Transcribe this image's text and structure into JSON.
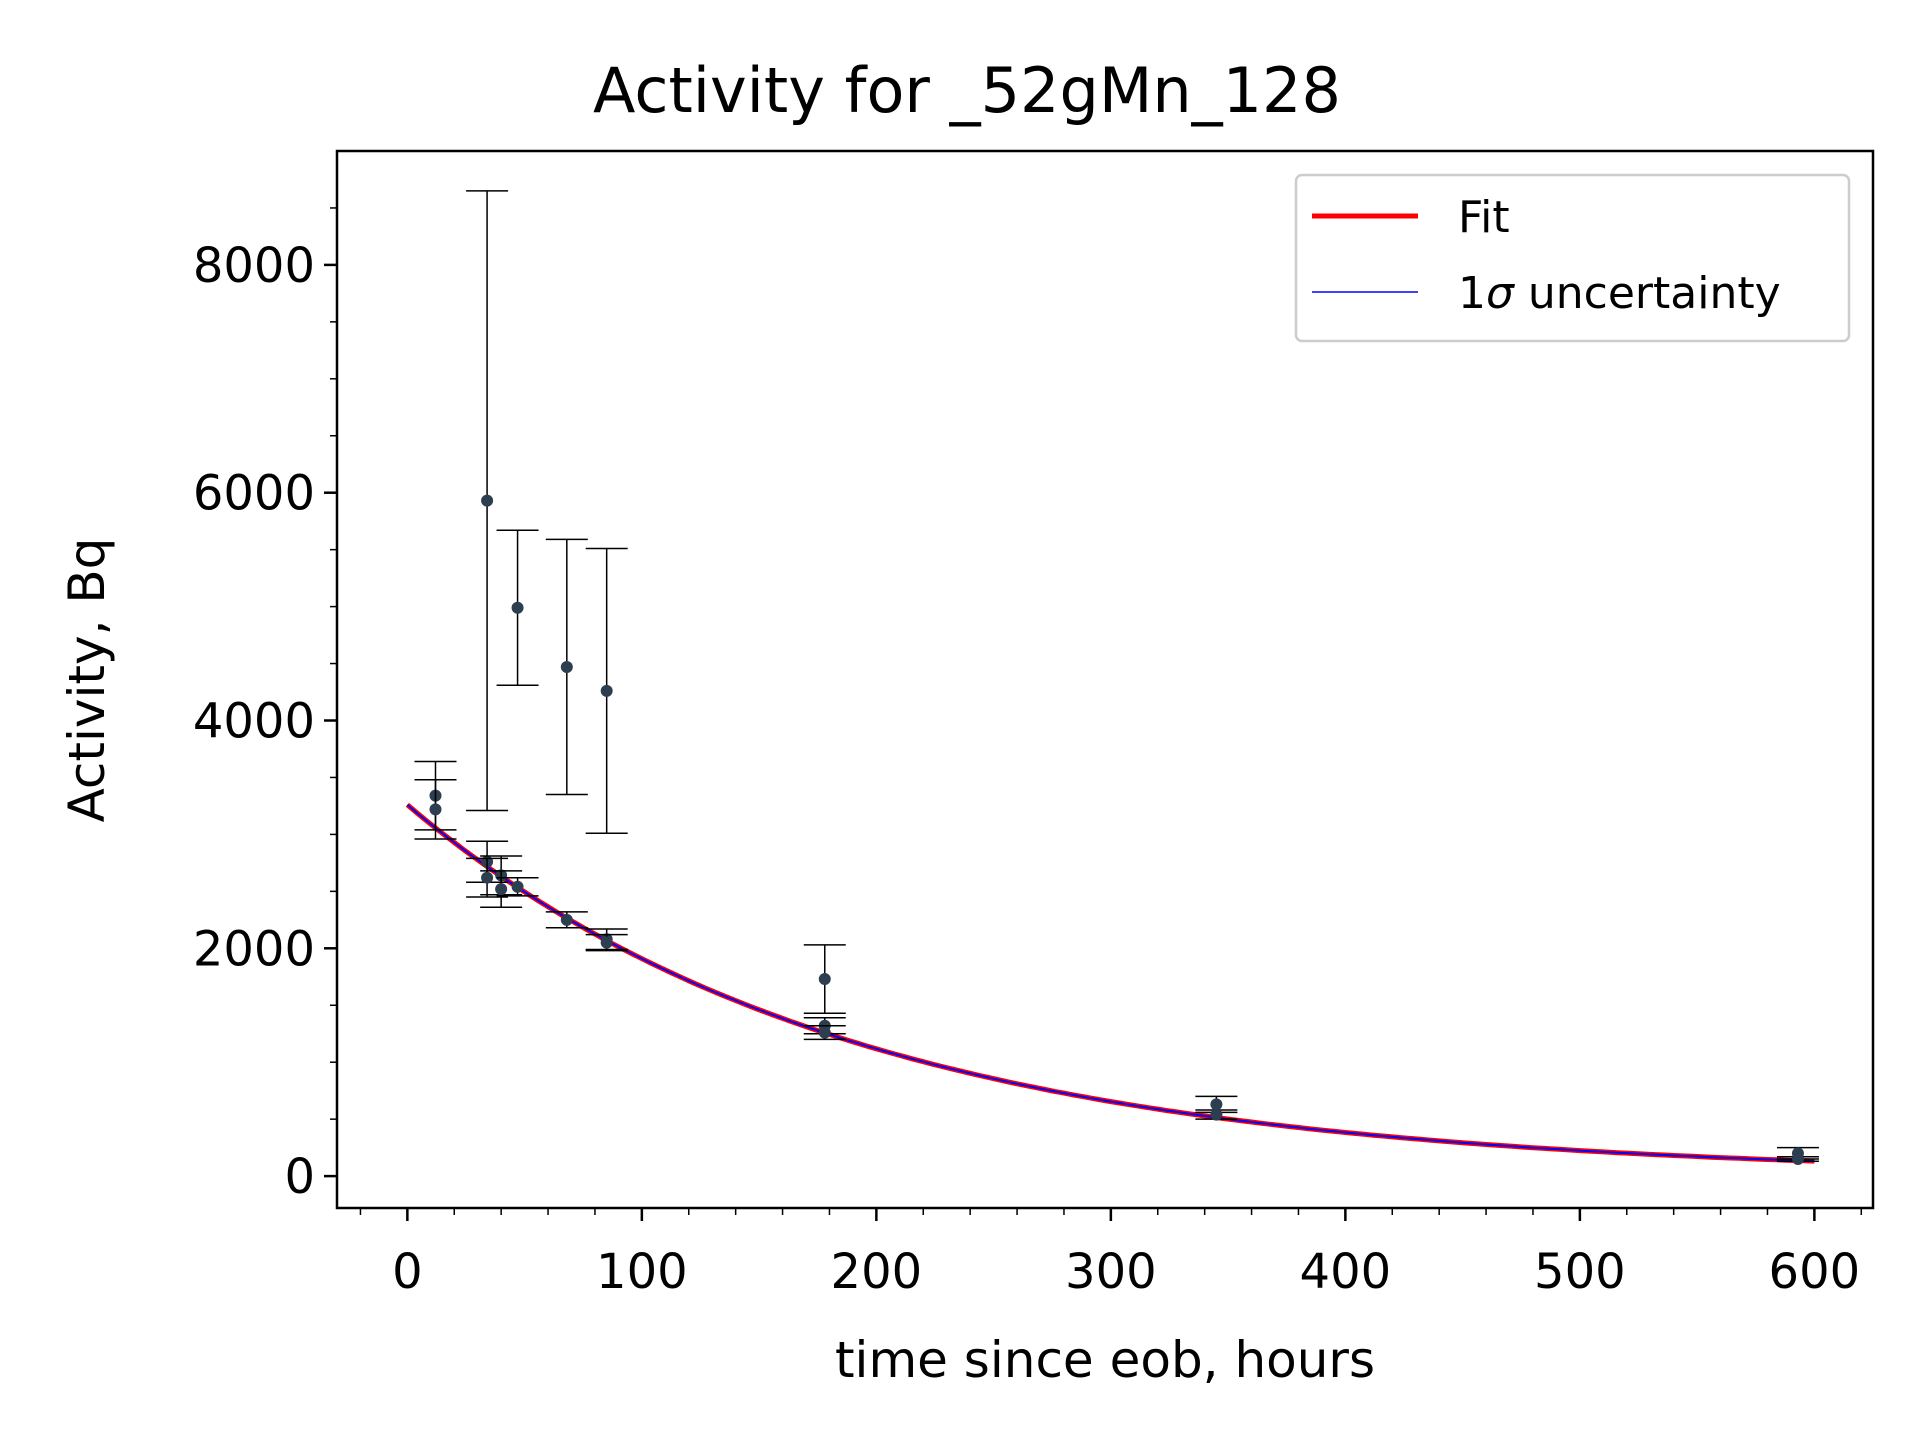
{
  "chart_data": {
    "type": "scatter",
    "title": "Activity for _52gMn_128",
    "xlabel": "time since eob, hours",
    "ylabel": "Activity, Bq",
    "xlim": [
      -30,
      625
    ],
    "ylim": [
      -280,
      9000
    ],
    "xticks": [
      0,
      100,
      200,
      300,
      400,
      500,
      600
    ],
    "yticks": [
      0,
      2000,
      4000,
      6000,
      8000
    ],
    "xtick_labels": [
      "0",
      "100",
      "200",
      "300",
      "400",
      "500",
      "600"
    ],
    "ytick_labels": [
      "0",
      "2000",
      "4000",
      "6000",
      "8000"
    ],
    "grid": false,
    "legend_position": "top-right",
    "legend": [
      {
        "label": "Fit",
        "color": "#ff0000"
      },
      {
        "label_prefix": "1",
        "label_symbol": "σ",
        "label_suffix": " uncertainty",
        "color": "#0000ff"
      }
    ],
    "fit": {
      "model": "exponential decay",
      "A0": 3260,
      "half_life_hours": 129.5,
      "color_fit": "#ff0000",
      "color_uncertainty": "#0000ff"
    },
    "series": [
      {
        "marker_color": "#2c3e50",
        "points": [
          {
            "x": 12,
            "y": 3340,
            "err": 300
          },
          {
            "x": 12,
            "y": 3220,
            "err": 260
          },
          {
            "x": 34,
            "y": 5930,
            "err": 2720
          },
          {
            "x": 34,
            "y": 2760,
            "err": 180
          },
          {
            "x": 34,
            "y": 2620,
            "err": 170
          },
          {
            "x": 40,
            "y": 2640,
            "err": 170
          },
          {
            "x": 40,
            "y": 2520,
            "err": 160
          },
          {
            "x": 47,
            "y": 4990,
            "err": 680
          },
          {
            "x": 47,
            "y": 2540,
            "err": 80
          },
          {
            "x": 68,
            "y": 4470,
            "err": 1120
          },
          {
            "x": 68,
            "y": 2250,
            "err": 70
          },
          {
            "x": 85,
            "y": 4260,
            "err": 1250
          },
          {
            "x": 85,
            "y": 2080,
            "err": 90
          },
          {
            "x": 85,
            "y": 2050,
            "err": 70
          },
          {
            "x": 178,
            "y": 1730,
            "err": 300
          },
          {
            "x": 178,
            "y": 1320,
            "err": 70
          },
          {
            "x": 178,
            "y": 1260,
            "err": 60
          },
          {
            "x": 345,
            "y": 630,
            "err": 70
          },
          {
            "x": 345,
            "y": 540,
            "err": 40
          },
          {
            "x": 593,
            "y": 200,
            "err": 50
          },
          {
            "x": 593,
            "y": 150,
            "err": 20
          }
        ]
      }
    ]
  }
}
